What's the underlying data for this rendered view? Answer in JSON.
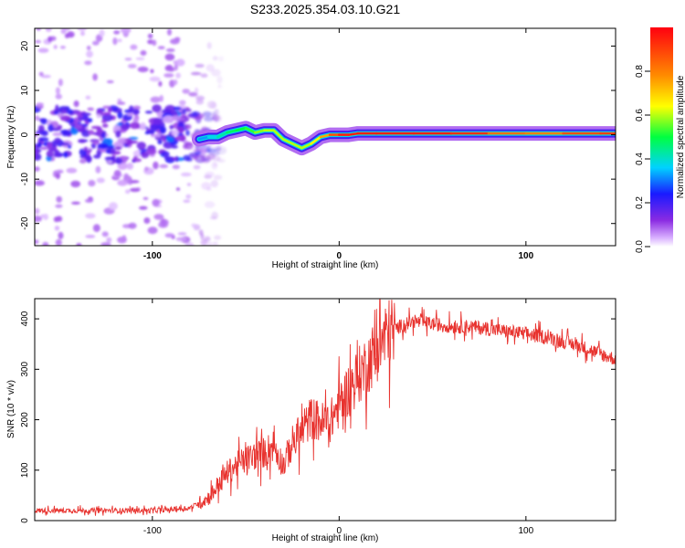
{
  "figure": {
    "title": "S233.2025.354.03.10.G21"
  },
  "chart_data": [
    {
      "type": "heatmap",
      "title": "S233.2025.354.03.10.G21",
      "xlabel": "Height of straight line (km)",
      "ylabel": "Frequency (Hz)",
      "xlim": [
        -163,
        148
      ],
      "ylim": [
        -25,
        24
      ],
      "x_ticks": [
        -100,
        0,
        100
      ],
      "x_tick_labels": [
        "-100",
        "0",
        "100"
      ],
      "y_ticks": [
        -20,
        -10,
        0,
        10,
        20
      ],
      "y_tick_labels": [
        "-20",
        "-10",
        "0",
        "10",
        "20"
      ],
      "colorbar": {
        "label": "Normalized spectral amplitude",
        "range": [
          0.0,
          1.0
        ],
        "ticks": [
          0.0,
          0.2,
          0.4,
          0.6,
          0.8
        ],
        "tick_labels": [
          "0.0",
          "0.2",
          "0.4",
          "0.6",
          "0.8"
        ],
        "colormap": "rainbow (white/magenta at 0, blue, cyan, green, yellow, red at 1)"
      },
      "ridge": {
        "description": "Frequency of dominant spectral ridge vs height",
        "x": [
          -75,
          -70,
          -65,
          -60,
          -55,
          -50,
          -45,
          -40,
          -35,
          -30,
          -25,
          -20,
          -15,
          -10,
          -5,
          0,
          5,
          10,
          20,
          40,
          60,
          80,
          100,
          120,
          140,
          148
        ],
        "y": [
          -1,
          -0.5,
          -0.5,
          0.5,
          1,
          1.5,
          0.5,
          1,
          1,
          -1,
          -2,
          -3,
          -2,
          -0.5,
          0,
          0,
          0,
          0.3,
          0.3,
          0.3,
          0.3,
          0.3,
          0.3,
          0.3,
          0.3,
          0.3
        ],
        "amplitude": [
          0.3,
          0.35,
          0.4,
          0.45,
          0.5,
          0.5,
          0.55,
          0.6,
          0.6,
          0.6,
          0.6,
          0.6,
          0.6,
          0.7,
          0.8,
          0.95,
          0.95,
          0.95,
          0.95,
          0.95,
          0.95,
          0.9,
          0.75,
          0.85,
          0.9,
          0.9
        ]
      },
      "noise_region": {
        "description": "Scattered low-amplitude blobs (noise) for heights below about -75 km",
        "x_range": [
          -163,
          -75
        ],
        "y_range": [
          -25,
          24
        ]
      }
    },
    {
      "type": "line",
      "xlabel": "Height of straight line (km)",
      "ylabel": "SNR (10 * v/v)",
      "xlim": [
        -163,
        148
      ],
      "ylim": [
        0,
        440
      ],
      "x_ticks": [
        -100,
        0,
        100
      ],
      "x_tick_labels": [
        "-100",
        "0",
        "100"
      ],
      "y_ticks": [
        0,
        100,
        200,
        300,
        400
      ],
      "y_tick_labels": [
        "0",
        "100",
        "200",
        "300",
        "400"
      ],
      "series": [
        {
          "name": "SNR",
          "color": "#e8332f",
          "x": [
            -163,
            -140,
            -120,
            -100,
            -90,
            -80,
            -75,
            -70,
            -65,
            -60,
            -55,
            -50,
            -45,
            -40,
            -35,
            -30,
            -25,
            -20,
            -15,
            -10,
            -5,
            0,
            5,
            10,
            15,
            20,
            25,
            30,
            35,
            40,
            50,
            60,
            70,
            80,
            90,
            100,
            110,
            120,
            130,
            140,
            148
          ],
          "y": [
            20,
            20,
            20,
            20,
            22,
            25,
            35,
            45,
            70,
            95,
            110,
            120,
            130,
            135,
            150,
            110,
            155,
            175,
            205,
            195,
            195,
            230,
            260,
            285,
            310,
            340,
            365,
            380,
            390,
            395,
            390,
            385,
            385,
            380,
            375,
            370,
            365,
            355,
            345,
            330,
            320
          ]
        }
      ]
    }
  ]
}
